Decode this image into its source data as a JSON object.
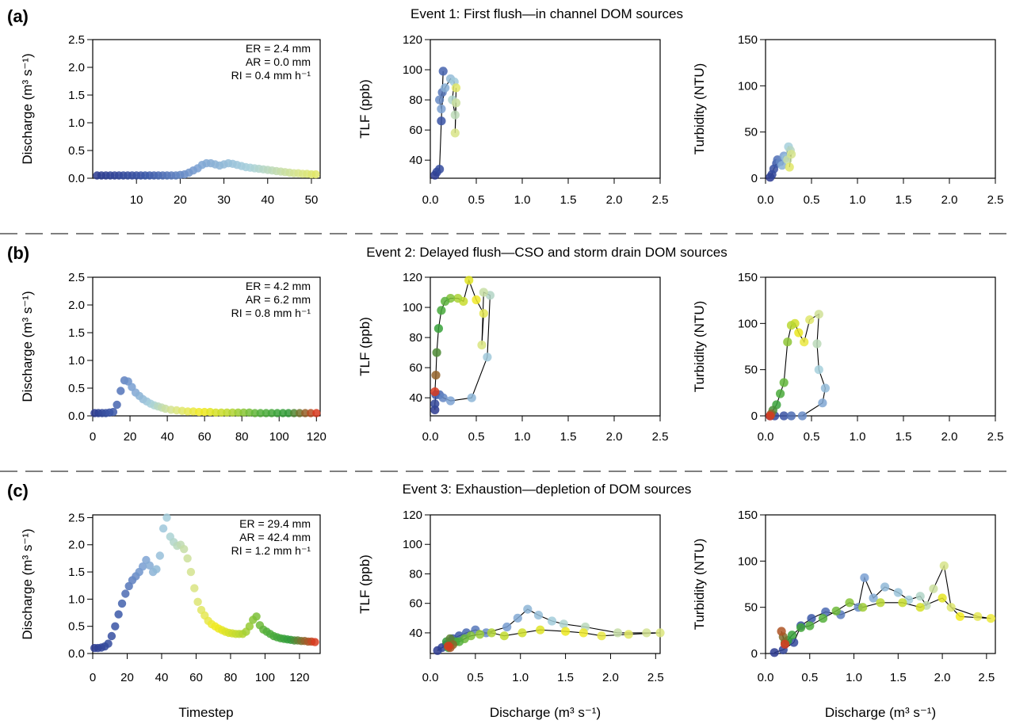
{
  "figure": {
    "rows": [
      {
        "panel_label": "(a)",
        "title": "Event 1: First flush—in channel DOM sources",
        "stats": [
          "ER =  2.4 mm",
          "AR = 0.0 mm",
          "RI = 0.4 mm h⁻¹"
        ]
      },
      {
        "panel_label": "(b)",
        "title": "Event 2: Delayed flush—CSO and storm drain DOM sources",
        "stats": [
          "ER =  4.2 mm",
          "AR = 6.2 mm",
          "RI = 0.8 mm h⁻¹"
        ]
      },
      {
        "panel_label": "(c)",
        "title": "Event 3: Exhaustion—depletion of DOM sources",
        "stats": [
          "ER = 29.4 mm",
          "AR = 42.4 mm",
          "RI = 1.2 mm h⁻¹"
        ]
      }
    ],
    "ylabels": {
      "discharge": "Discharge (m³ s⁻¹)",
      "tlf": "TLF (ppb)",
      "turbidity": "Turbidity (NTU)"
    },
    "xlabels": {
      "timestep": "Timestep",
      "discharge": "Discharge (m³ s⁻¹)"
    },
    "colors": {
      "gradient": [
        "#2b3a8f",
        "#3b58a8",
        "#7aa0d2",
        "#a6d0dc",
        "#d7e48a",
        "#f2ea1f",
        "#b8d733",
        "#55b03c",
        "#2e9c3a",
        "#d83a1e"
      ],
      "line": "#000000",
      "separator": "#555555"
    }
  },
  "chart_data": [
    {
      "type": "scatter",
      "id": "a1",
      "x": [
        1,
        2,
        3,
        4,
        5,
        6,
        7,
        8,
        9,
        10,
        11,
        12,
        13,
        14,
        15,
        16,
        17,
        18,
        19,
        20,
        21,
        22,
        23,
        24,
        25,
        26,
        27,
        28,
        29,
        30,
        31,
        32,
        33,
        34,
        35,
        36,
        37,
        38,
        39,
        40,
        41,
        42,
        43,
        44,
        45,
        46,
        47,
        48,
        49,
        50,
        51
      ],
      "y": [
        0.05,
        0.05,
        0.05,
        0.05,
        0.05,
        0.05,
        0.05,
        0.05,
        0.05,
        0.05,
        0.05,
        0.05,
        0.05,
        0.05,
        0.05,
        0.05,
        0.05,
        0.05,
        0.05,
        0.06,
        0.07,
        0.1,
        0.14,
        0.18,
        0.24,
        0.27,
        0.27,
        0.25,
        0.23,
        0.25,
        0.27,
        0.26,
        0.24,
        0.22,
        0.2,
        0.19,
        0.18,
        0.17,
        0.16,
        0.15,
        0.14,
        0.13,
        0.12,
        0.11,
        0.1,
        0.09,
        0.09,
        0.08,
        0.08,
        0.07,
        0.07
      ],
      "xlim": [
        0,
        52
      ],
      "ylim": [
        0,
        2.5
      ],
      "xticks": [
        10,
        20,
        30,
        40,
        50
      ],
      "yticks": [
        0.0,
        0.5,
        1.0,
        1.5,
        2.0,
        2.5
      ],
      "ytick_labels": [
        "0.0",
        "0.5",
        "1.0",
        "1.5",
        "2.0",
        "2.5"
      ]
    },
    {
      "type": "line",
      "id": "a2",
      "x": [
        0.05,
        0.07,
        0.1,
        0.12,
        0.14,
        0.13,
        0.1,
        0.12,
        0.16,
        0.22,
        0.26,
        0.24,
        0.27,
        0.28,
        0.27,
        0.28
      ],
      "y": [
        30,
        32,
        34,
        66,
        99,
        85,
        80,
        74,
        88,
        94,
        92,
        80,
        70,
        78,
        58,
        88
      ],
      "xlim": [
        0,
        2.5
      ],
      "ylim": [
        28,
        120
      ],
      "xticks": [
        0.0,
        0.5,
        1.0,
        1.5,
        2.0,
        2.5
      ],
      "yticks": [
        40,
        60,
        80,
        100,
        120
      ],
      "xtick_labels": [
        "0.0",
        "0.5",
        "1.0",
        "1.5",
        "2.0",
        "2.5"
      ]
    },
    {
      "type": "line",
      "id": "a3",
      "x": [
        0.05,
        0.07,
        0.09,
        0.12,
        0.13,
        0.16,
        0.2,
        0.18,
        0.22,
        0.25,
        0.27,
        0.24,
        0.28,
        0.26
      ],
      "y": [
        1,
        4,
        10,
        16,
        20,
        18,
        24,
        14,
        22,
        34,
        30,
        20,
        26,
        12
      ],
      "xlim": [
        0,
        2.5
      ],
      "ylim": [
        0,
        150
      ],
      "xticks": [
        0.0,
        0.5,
        1.0,
        1.5,
        2.0,
        2.5
      ],
      "yticks": [
        0,
        50,
        100,
        150
      ],
      "xtick_labels": [
        "0.0",
        "0.5",
        "1.0",
        "1.5",
        "2.0",
        "2.5"
      ]
    },
    {
      "type": "scatter",
      "id": "b1",
      "x": [
        1,
        3,
        5,
        7,
        9,
        11,
        13,
        15,
        17,
        19,
        21,
        23,
        25,
        27,
        29,
        31,
        33,
        35,
        37,
        39,
        42,
        45,
        48,
        51,
        54,
        57,
        60,
        63,
        66,
        69,
        72,
        75,
        78,
        81,
        84,
        87,
        90,
        93,
        96,
        99,
        102,
        105,
        108,
        111,
        114,
        117,
        120
      ],
      "y": [
        0.05,
        0.05,
        0.05,
        0.05,
        0.06,
        0.07,
        0.2,
        0.45,
        0.64,
        0.62,
        0.52,
        0.42,
        0.36,
        0.3,
        0.26,
        0.22,
        0.19,
        0.17,
        0.15,
        0.13,
        0.11,
        0.1,
        0.09,
        0.08,
        0.08,
        0.07,
        0.07,
        0.07,
        0.06,
        0.06,
        0.06,
        0.06,
        0.06,
        0.06,
        0.06,
        0.05,
        0.05,
        0.05,
        0.05,
        0.05,
        0.05,
        0.05,
        0.05,
        0.05,
        0.05,
        0.05,
        0.05
      ],
      "xlim": [
        0,
        122
      ],
      "ylim": [
        0,
        2.5
      ],
      "xticks": [
        0,
        20,
        40,
        60,
        80,
        100,
        120
      ],
      "yticks": [
        0.0,
        0.5,
        1.0,
        1.5,
        2.0,
        2.5
      ],
      "ytick_labels": [
        "0.0",
        "0.5",
        "1.0",
        "1.5",
        "2.0",
        "2.5"
      ]
    },
    {
      "type": "line",
      "id": "b2",
      "x": [
        0.05,
        0.05,
        0.06,
        0.1,
        0.14,
        0.22,
        0.45,
        0.62,
        0.65,
        0.58,
        0.56,
        0.58,
        0.5,
        0.42,
        0.36,
        0.3,
        0.22,
        0.16,
        0.12,
        0.09,
        0.07,
        0.06,
        0.05
      ],
      "y": [
        32,
        36,
        42,
        42,
        40,
        38,
        40,
        67,
        108,
        110,
        75,
        96,
        105,
        118,
        104,
        106,
        106,
        104,
        98,
        86,
        70,
        55,
        44
      ],
      "xlim": [
        0,
        2.5
      ],
      "ylim": [
        28,
        120
      ],
      "xticks": [
        0.0,
        0.5,
        1.0,
        1.5,
        2.0,
        2.5
      ],
      "yticks": [
        40,
        60,
        80,
        100,
        120
      ],
      "xtick_labels": [
        "0.0",
        "0.5",
        "1.0",
        "1.5",
        "2.0",
        "2.5"
      ]
    },
    {
      "type": "line",
      "id": "b3",
      "x": [
        0.05,
        0.1,
        0.2,
        0.28,
        0.4,
        0.62,
        0.65,
        0.58,
        0.56,
        0.58,
        0.48,
        0.42,
        0.36,
        0.32,
        0.28,
        0.24,
        0.2,
        0.16,
        0.12,
        0.08,
        0.06,
        0.05
      ],
      "y": [
        0,
        0,
        0,
        0,
        0,
        14,
        30,
        50,
        78,
        110,
        104,
        80,
        90,
        100,
        98,
        80,
        36,
        24,
        12,
        6,
        2,
        0
      ],
      "xlim": [
        0,
        2.5
      ],
      "ylim": [
        0,
        150
      ],
      "xticks": [
        0.0,
        0.5,
        1.0,
        1.5,
        2.0,
        2.5
      ],
      "yticks": [
        0,
        50,
        100,
        150
      ],
      "xtick_labels": [
        "0.0",
        "0.5",
        "1.0",
        "1.5",
        "2.0",
        "2.5"
      ]
    },
    {
      "type": "scatter",
      "id": "c1",
      "x": [
        1,
        3,
        5,
        7,
        9,
        11,
        13,
        15,
        17,
        19,
        21,
        23,
        25,
        27,
        29,
        31,
        33,
        35,
        37,
        39,
        41,
        43,
        45,
        47,
        49,
        51,
        53,
        55,
        57,
        59,
        61,
        63,
        65,
        67,
        69,
        71,
        73,
        75,
        77,
        79,
        81,
        83,
        85,
        87,
        89,
        91,
        93,
        95,
        97,
        99,
        101,
        103,
        105,
        107,
        109,
        111,
        113,
        115,
        117,
        119,
        121,
        123,
        125,
        127,
        129
      ],
      "y": [
        0.1,
        0.1,
        0.11,
        0.13,
        0.18,
        0.32,
        0.5,
        0.72,
        0.92,
        1.1,
        1.24,
        1.35,
        1.42,
        1.5,
        1.6,
        1.72,
        1.62,
        1.5,
        1.55,
        1.8,
        2.3,
        2.5,
        2.15,
        2.05,
        1.98,
        2.0,
        1.92,
        1.75,
        1.5,
        1.2,
        0.95,
        0.8,
        0.7,
        0.6,
        0.54,
        0.5,
        0.46,
        0.43,
        0.4,
        0.38,
        0.37,
        0.36,
        0.36,
        0.36,
        0.4,
        0.5,
        0.62,
        0.68,
        0.52,
        0.44,
        0.4,
        0.36,
        0.32,
        0.3,
        0.28,
        0.27,
        0.26,
        0.25,
        0.24,
        0.24,
        0.23,
        0.23,
        0.22,
        0.22,
        0.21
      ],
      "xlim": [
        0,
        132
      ],
      "ylim": [
        0,
        2.55
      ],
      "xticks": [
        0,
        20,
        40,
        60,
        80,
        100,
        120
      ],
      "yticks": [
        0.0,
        0.5,
        1.0,
        1.5,
        2.0,
        2.5
      ],
      "ytick_labels": [
        "0.0",
        "0.5",
        "1.0",
        "1.5",
        "2.0",
        "2.5"
      ]
    },
    {
      "type": "line",
      "id": "c2",
      "x": [
        0.08,
        0.13,
        0.18,
        0.25,
        0.32,
        0.4,
        0.5,
        0.62,
        0.85,
        0.97,
        1.08,
        1.2,
        1.35,
        1.48,
        1.72,
        2.08,
        2.4,
        2.55,
        2.2,
        1.9,
        1.7,
        1.5,
        1.22,
        1.02,
        0.82,
        0.68,
        0.55,
        0.45,
        0.38,
        0.32,
        0.28,
        0.22,
        0.2,
        0.18,
        0.22,
        0.25,
        0.22,
        0.2
      ],
      "y": [
        28,
        30,
        32,
        36,
        38,
        40,
        42,
        40,
        44,
        50,
        56,
        52,
        48,
        46,
        44,
        40,
        40,
        40,
        39,
        38,
        40,
        41,
        42,
        40,
        38,
        40,
        39,
        38,
        36,
        34,
        34,
        33,
        30,
        34,
        36,
        32,
        30,
        31
      ],
      "xlim": [
        0,
        2.55
      ],
      "ylim": [
        26,
        120
      ],
      "xticks": [
        0.0,
        0.5,
        1.0,
        1.5,
        2.0,
        2.5
      ],
      "yticks": [
        40,
        60,
        80,
        100,
        120
      ],
      "xtick_labels": [
        "0.0",
        "0.5",
        "1.0",
        "1.5",
        "2.0",
        "2.5"
      ]
    },
    {
      "type": "line",
      "id": "c3",
      "x": [
        0.1,
        0.2,
        0.32,
        0.4,
        0.52,
        0.68,
        0.85,
        1.05,
        1.12,
        1.22,
        1.35,
        1.5,
        1.62,
        1.75,
        1.82,
        1.9,
        2.02,
        2.1,
        2.4,
        2.55,
        2.2,
        2.0,
        1.75,
        1.55,
        1.3,
        1.1,
        0.95,
        0.8,
        0.65,
        0.5,
        0.4,
        0.3,
        0.25,
        0.22,
        0.2,
        0.18,
        0.22
      ],
      "y": [
        1,
        4,
        12,
        30,
        38,
        45,
        42,
        50,
        82,
        60,
        72,
        66,
        58,
        62,
        52,
        70,
        95,
        50,
        40,
        38,
        40,
        60,
        50,
        55,
        55,
        50,
        55,
        46,
        38,
        30,
        28,
        20,
        14,
        12,
        18,
        24,
        10
      ],
      "xlim": [
        0,
        2.6
      ],
      "ylim": [
        0,
        150
      ],
      "xticks": [
        0.0,
        0.5,
        1.0,
        1.5,
        2.0,
        2.5
      ],
      "yticks": [
        0,
        50,
        100,
        150
      ],
      "xtick_labels": [
        "0.0",
        "0.5",
        "1.0",
        "1.5",
        "2.0",
        "2.5"
      ]
    }
  ]
}
